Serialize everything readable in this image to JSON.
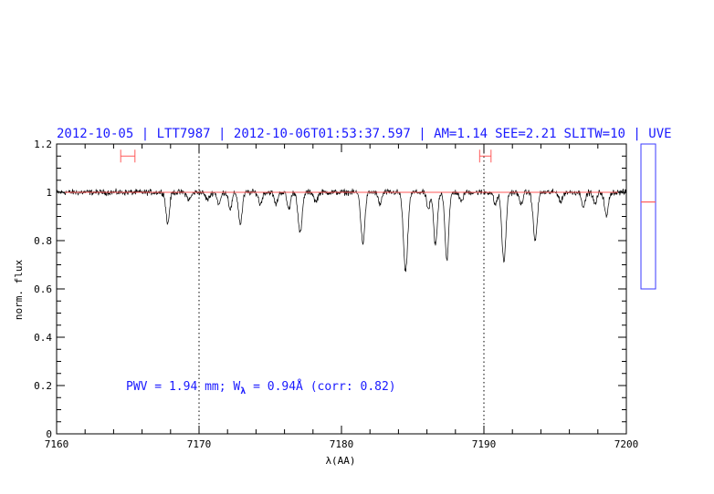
{
  "header": {
    "date": "2012-10-05",
    "star": "LTT7987",
    "timestamp": "2012-10-06T01:53:37.597",
    "airmass": "AM=1.14",
    "seeing": "SEE=2.21",
    "slit": "SLITW=10",
    "arm": "UVE",
    "separator": " | "
  },
  "annotation": {
    "prefix": "PWV = 1.94 mm; W",
    "sub": "λ",
    "suffix": " = 0.94Å (corr: 0.82)"
  },
  "colors": {
    "text": "#1a1aff",
    "continuum": "#ff5a5a",
    "marker": "#ff5a5a",
    "spectrum": "#000000",
    "box": "#3a3aff"
  },
  "chart_data": {
    "type": "line",
    "xlabel": "λ(AA)",
    "ylabel": "norm. flux",
    "xlim": [
      7160,
      7200
    ],
    "ylim": [
      0,
      1.2
    ],
    "x_ticks": [
      7160,
      7170,
      7180,
      7190,
      7200
    ],
    "x_tick_labels": [
      "7160",
      "7170",
      "7180",
      "7190",
      "7200"
    ],
    "y_ticks": [
      0,
      0.2,
      0.4,
      0.6,
      0.8,
      1,
      1.2
    ],
    "y_tick_labels": [
      "0",
      "0.2",
      "0.4",
      "0.6",
      "0.8",
      "1",
      "1.2"
    ],
    "vertical_dotted_lines": [
      7170,
      7190
    ],
    "continuum_level": 1.0,
    "continuum_windows": [
      {
        "x0": 7164.5,
        "x1": 7165.5,
        "y": 1.15
      },
      {
        "x0": 7189.7,
        "x1": 7190.5,
        "y": 1.15
      }
    ],
    "side_indicator": {
      "ylim": [
        0.6,
        1.2
      ],
      "marker": 0.96
    },
    "series": [
      {
        "continuum": 1.0,
        "noise": 0.012,
        "absorption_lines": [
          {
            "x": 7167.8,
            "depth": 0.13,
            "width": 0.12
          },
          {
            "x": 7169.3,
            "depth": 0.03,
            "width": 0.15
          },
          {
            "x": 7170.6,
            "depth": 0.03,
            "width": 0.15
          },
          {
            "x": 7171.4,
            "depth": 0.05,
            "width": 0.12
          },
          {
            "x": 7172.2,
            "depth": 0.07,
            "width": 0.12
          },
          {
            "x": 7172.9,
            "depth": 0.13,
            "width": 0.13
          },
          {
            "x": 7174.3,
            "depth": 0.05,
            "width": 0.12
          },
          {
            "x": 7175.4,
            "depth": 0.05,
            "width": 0.12
          },
          {
            "x": 7176.3,
            "depth": 0.07,
            "width": 0.12
          },
          {
            "x": 7177.1,
            "depth": 0.17,
            "width": 0.14
          },
          {
            "x": 7178.2,
            "depth": 0.04,
            "width": 0.12
          },
          {
            "x": 7181.5,
            "depth": 0.21,
            "width": 0.14
          },
          {
            "x": 7182.7,
            "depth": 0.05,
            "width": 0.12
          },
          {
            "x": 7184.5,
            "depth": 0.33,
            "width": 0.15
          },
          {
            "x": 7186.1,
            "depth": 0.07,
            "width": 0.12
          },
          {
            "x": 7186.6,
            "depth": 0.22,
            "width": 0.13
          },
          {
            "x": 7187.4,
            "depth": 0.28,
            "width": 0.13
          },
          {
            "x": 7188.4,
            "depth": 0.04,
            "width": 0.12
          },
          {
            "x": 7190.8,
            "depth": 0.05,
            "width": 0.12
          },
          {
            "x": 7191.4,
            "depth": 0.29,
            "width": 0.14
          },
          {
            "x": 7192.6,
            "depth": 0.05,
            "width": 0.12
          },
          {
            "x": 7193.6,
            "depth": 0.2,
            "width": 0.14
          },
          {
            "x": 7195.4,
            "depth": 0.04,
            "width": 0.12
          },
          {
            "x": 7197.0,
            "depth": 0.06,
            "width": 0.12
          },
          {
            "x": 7197.8,
            "depth": 0.05,
            "width": 0.12
          },
          {
            "x": 7198.6,
            "depth": 0.1,
            "width": 0.13
          }
        ]
      }
    ]
  }
}
